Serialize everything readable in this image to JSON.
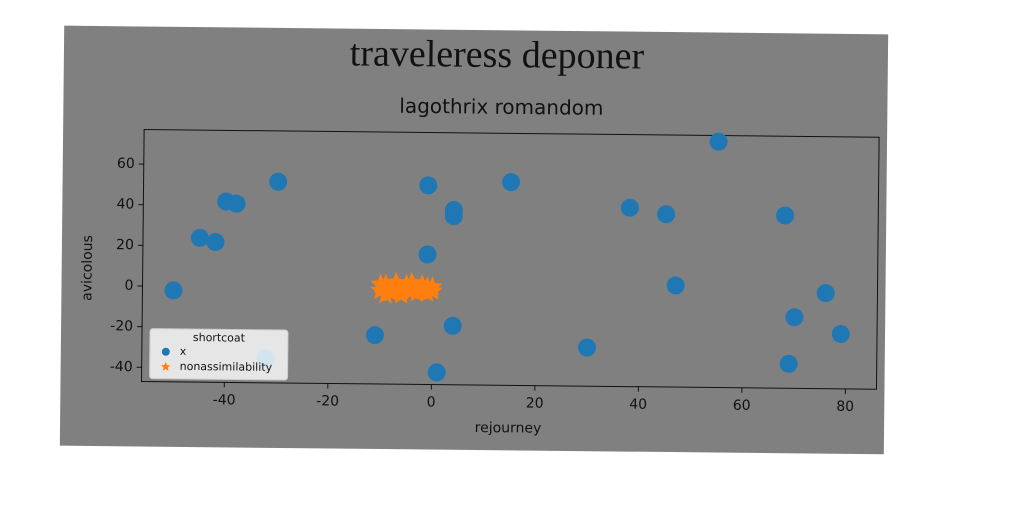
{
  "chart_data": {
    "type": "scatter",
    "suptitle": "traveleress deponer",
    "title": "lagothrix romandom",
    "x_label": "rejourney",
    "y_label": "avicolous",
    "legend_title": "shortcoat",
    "legend_position": "lower left",
    "xlim": [
      -56,
      86
    ],
    "ylim": [
      -47,
      77
    ],
    "xticks": [
      -40,
      -20,
      0,
      20,
      40,
      60,
      80
    ],
    "yticks": [
      -40,
      -20,
      0,
      20,
      40,
      60
    ],
    "series": [
      {
        "name": "x",
        "color": "#1f77b4",
        "marker": "circle",
        "x": [
          -50,
          -45,
          -42,
          -40,
          -38,
          -30,
          -1,
          4,
          4,
          15,
          -1,
          4,
          -11,
          1,
          30,
          38,
          45,
          47,
          55,
          68,
          76,
          70,
          79,
          69,
          -32
        ],
        "y": [
          -2,
          24,
          22,
          42,
          41,
          52,
          51,
          39,
          36,
          53,
          17,
          -18,
          -23,
          -41,
          -28,
          41,
          38,
          3,
          74,
          38,
          0,
          -12,
          -20,
          -35,
          -35
        ]
      },
      {
        "name": "nonassimilability",
        "color": "#ff7f0e",
        "marker": "star",
        "x": [
          -10,
          -9,
          -8,
          -7,
          -6,
          -5,
          -4,
          -3,
          -2,
          -1,
          0,
          -10,
          -8,
          -6,
          -4,
          -2,
          0,
          -9,
          -7,
          -5,
          -3,
          -1
        ],
        "y": [
          -1,
          2,
          -2,
          1,
          -3,
          2,
          -1,
          0,
          2,
          -2,
          1,
          2,
          0,
          -1,
          3,
          0,
          -1,
          -3,
          3,
          0,
          -2,
          1
        ]
      }
    ]
  }
}
